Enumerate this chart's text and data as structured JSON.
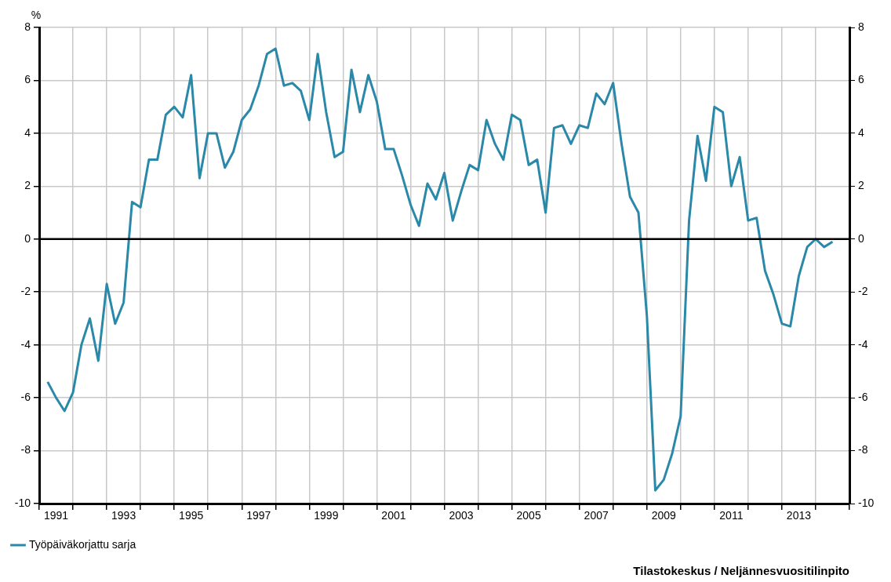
{
  "chart_data": {
    "type": "line",
    "annotations": [
      "%",
      "Tilastokeskus / Neljännesvuositilinpito"
    ],
    "x": [
      1991.25,
      1991.5,
      1991.75,
      1992,
      1992.25,
      1992.5,
      1992.75,
      1993,
      1993.25,
      1993.5,
      1993.75,
      1994,
      1994.25,
      1994.5,
      1994.75,
      1995,
      1995.25,
      1995.5,
      1995.75,
      1996,
      1996.25,
      1996.5,
      1996.75,
      1997,
      1997.25,
      1997.5,
      1997.75,
      1998,
      1998.25,
      1998.5,
      1998.75,
      1999,
      1999.25,
      1999.5,
      1999.75,
      2000,
      2000.25,
      2000.5,
      2000.75,
      2001,
      2001.25,
      2001.5,
      2001.75,
      2002,
      2002.25,
      2002.5,
      2002.75,
      2003,
      2003.25,
      2003.5,
      2003.75,
      2004,
      2004.25,
      2004.5,
      2004.75,
      2005,
      2005.25,
      2005.5,
      2005.75,
      2006,
      2006.25,
      2006.5,
      2006.75,
      2007,
      2007.25,
      2007.5,
      2007.75,
      2008,
      2008.25,
      2008.5,
      2008.75,
      2009,
      2009.25,
      2009.5,
      2009.75,
      2010,
      2010.25,
      2010.5,
      2010.75,
      2011,
      2011.25,
      2011.5,
      2011.75,
      2012,
      2012.25,
      2012.5,
      2012.75,
      2013,
      2013.25,
      2013.5,
      2013.75,
      2014,
      2014.25,
      2014.5
    ],
    "series": [
      {
        "name": "Työpäiväkorjattu sarja",
        "color": "#2a88a8",
        "values": [
          -5.4,
          -6.0,
          -6.5,
          -5.8,
          -4.0,
          -3.0,
          -4.6,
          -1.7,
          -3.2,
          -2.4,
          1.4,
          1.2,
          3.0,
          3.0,
          4.7,
          5.0,
          4.6,
          6.2,
          2.3,
          4.0,
          4.0,
          2.7,
          3.3,
          4.5,
          4.9,
          5.8,
          7.0,
          7.2,
          5.8,
          5.9,
          5.6,
          4.5,
          7.0,
          4.8,
          3.1,
          3.3,
          6.4,
          4.8,
          6.2,
          5.2,
          3.4,
          3.4,
          2.4,
          1.3,
          0.5,
          2.1,
          1.5,
          2.5,
          0.7,
          1.8,
          2.8,
          2.6,
          4.5,
          3.6,
          3.0,
          4.7,
          4.5,
          2.8,
          3.0,
          1.0,
          4.2,
          4.3,
          3.6,
          4.3,
          4.2,
          5.5,
          5.1,
          5.9,
          3.6,
          1.6,
          1.0,
          -2.9,
          -9.5,
          -9.1,
          -8.1,
          -6.7,
          0.7,
          3.9,
          2.2,
          5.0,
          4.8,
          2.0,
          3.1,
          0.7,
          0.8,
          -1.2,
          -2.1,
          -3.2,
          -3.3,
          -1.4,
          -0.3,
          0.0,
          -0.3,
          -0.1
        ]
      }
    ],
    "xlim": [
      1991,
      2015
    ],
    "xticks": [
      {
        "value": 1991,
        "label": null
      },
      {
        "value": 1991.5,
        "label": "1991"
      },
      {
        "value": 1992,
        "label": null
      },
      {
        "value": 1993,
        "label": null
      },
      {
        "value": 1993.5,
        "label": "1993"
      },
      {
        "value": 1994,
        "label": null
      },
      {
        "value": 1995,
        "label": null
      },
      {
        "value": 1995.5,
        "label": "1995"
      },
      {
        "value": 1996,
        "label": null
      },
      {
        "value": 1997,
        "label": null
      },
      {
        "value": 1997.5,
        "label": "1997"
      },
      {
        "value": 1998,
        "label": null
      },
      {
        "value": 1999,
        "label": null
      },
      {
        "value": 1999.5,
        "label": "1999"
      },
      {
        "value": 2000,
        "label": null
      },
      {
        "value": 2001,
        "label": null
      },
      {
        "value": 2001.5,
        "label": "2001"
      },
      {
        "value": 2002,
        "label": null
      },
      {
        "value": 2003,
        "label": null
      },
      {
        "value": 2003.5,
        "label": "2003"
      },
      {
        "value": 2004,
        "label": null
      },
      {
        "value": 2005,
        "label": null
      },
      {
        "value": 2005.5,
        "label": "2005"
      },
      {
        "value": 2006,
        "label": null
      },
      {
        "value": 2007,
        "label": null
      },
      {
        "value": 2007.5,
        "label": "2007"
      },
      {
        "value": 2008,
        "label": null
      },
      {
        "value": 2009,
        "label": null
      },
      {
        "value": 2009.5,
        "label": "2009"
      },
      {
        "value": 2010,
        "label": null
      },
      {
        "value": 2011,
        "label": null
      },
      {
        "value": 2011.5,
        "label": "2011"
      },
      {
        "value": 2012,
        "label": null
      },
      {
        "value": 2013,
        "label": null
      },
      {
        "value": 2013.5,
        "label": "2013"
      },
      {
        "value": 2014,
        "label": null
      },
      {
        "value": 2015,
        "label": null
      }
    ],
    "ylim": [
      -10,
      8
    ],
    "yticks": [
      -10,
      -8,
      -6,
      -4,
      -2,
      0,
      2,
      4,
      6,
      8
    ],
    "y2lim": [
      -10,
      8
    ],
    "y2ticks": [
      -10,
      -8,
      -6,
      -4,
      -2,
      0,
      2,
      4,
      6,
      8
    ],
    "ref_lines": [
      {
        "axis": "y",
        "value": 0,
        "color": "#000000"
      }
    ],
    "grid": true,
    "legend": "bottom left",
    "marker": "none",
    "line_style": "solid"
  }
}
